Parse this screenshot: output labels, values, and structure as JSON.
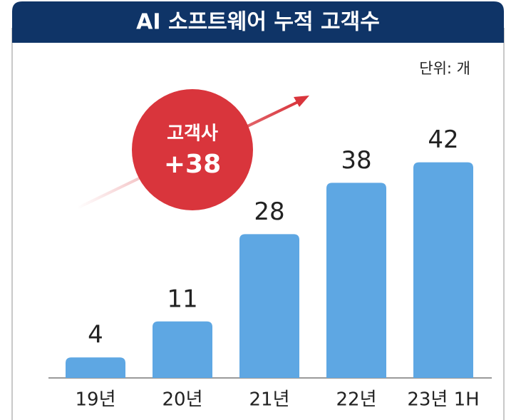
{
  "chart_data": {
    "type": "bar",
    "title": "AI 소프트웨어 누적 고객수",
    "unit_label": "단위: 개",
    "annotations": [
      "고객사",
      "+38"
    ],
    "categories": [
      "19년",
      "20년",
      "21년",
      "22년",
      "23년 1H"
    ],
    "values": [
      4,
      11,
      28,
      38,
      42
    ],
    "color": "#5ea7e3"
  }
}
